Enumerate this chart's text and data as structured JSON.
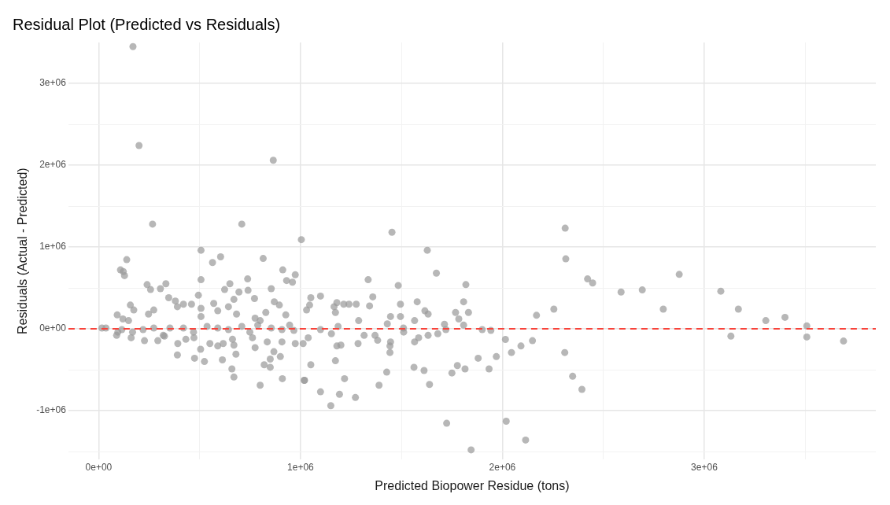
{
  "chart_data": {
    "type": "scatter",
    "title": "Residual Plot (Predicted vs Residuals)",
    "xlabel": "Predicted Biopower Residue (tons)",
    "ylabel": "Residuals (Actual - Predicted)",
    "xlim": [
      -150000,
      3850000
    ],
    "ylim": [
      -1600000,
      3500000
    ],
    "xticks": [
      {
        "value": 0,
        "label": "0e+00"
      },
      {
        "value": 500000,
        "label": null
      },
      {
        "value": 1000000,
        "label": "1e+06"
      },
      {
        "value": 1500000,
        "label": null
      },
      {
        "value": 2000000,
        "label": "2e+06"
      },
      {
        "value": 2500000,
        "label": null
      },
      {
        "value": 3000000,
        "label": "3e+06"
      },
      {
        "value": 3500000,
        "label": null
      }
    ],
    "yticks": [
      {
        "value": -1500000,
        "label": null
      },
      {
        "value": -1000000,
        "label": "-1e+06"
      },
      {
        "value": -500000,
        "label": null
      },
      {
        "value": 0,
        "label": "0e+00"
      },
      {
        "value": 500000,
        "label": null
      },
      {
        "value": 1000000,
        "label": "1e+06"
      },
      {
        "value": 1500000,
        "label": null
      },
      {
        "value": 2000000,
        "label": "2e+06"
      },
      {
        "value": 2500000,
        "label": null
      },
      {
        "value": 3000000,
        "label": "3e+06"
      }
    ],
    "grid": true,
    "marker": "circle",
    "legend": false,
    "ref_lines": [
      {
        "axis": "y",
        "value": 0,
        "color": "#f8433a",
        "line_style": "dashed"
      }
    ],
    "series": [
      {
        "color": "#999999",
        "x": [
          170000,
          200000,
          865000,
          267000,
          709000,
          1004000,
          139000,
          108000,
          122000,
          128000,
          507000,
          564000,
          604000,
          815000,
          912000,
          974000,
          931000,
          960000,
          507000,
          240000,
          257000,
          306000,
          333000,
          347000,
          650000,
          624000,
          738000,
          740000,
          855000,
          494000,
          570000,
          695000,
          670000,
          772000,
          870000,
          895000,
          157000,
          174000,
          92000,
          120000,
          148000,
          247000,
          273000,
          380000,
          390000,
          420000,
          460000,
          507000,
          507000,
          590000,
          643000,
          683000,
          775000,
          800000,
          828000,
          927000,
          946000,
          1030000,
          16000,
          36000,
          95000,
          115000,
          168000,
          220000,
          273000,
          320000,
          353000,
          420000,
          470000,
          537000,
          590000,
          643000,
          709000,
          749000,
          788000,
          855000,
          908000,
          967000,
          89000,
          161000,
          227000,
          293000,
          326000,
          392000,
          432000,
          472000,
          505000,
          551000,
          590000,
          617000,
          663000,
          670000,
          762000,
          775000,
          835000,
          868000,
          908000,
          974000,
          1013000,
          390000,
          475000,
          524000,
          613000,
          680000,
          660000,
          670000,
          820000,
          850000,
          850000,
          900000,
          800000,
          910000,
          1020000,
          1453000,
          1628000,
          1673000,
          1335000,
          1484000,
          1819000,
          1051000,
          1099000,
          1045000,
          1166000,
          1180000,
          1214000,
          1240000,
          1276000,
          1173000,
          1342000,
          1358000,
          1495000,
          1495000,
          1446000,
          1578000,
          1616000,
          1632000,
          1768000,
          1784000,
          1808000,
          1832000,
          1288000,
          1186000,
          1430000,
          1510000,
          1565000,
          1713000,
          1808000,
          1900000,
          1943000,
          1038000,
          1099000,
          1153000,
          1180000,
          1200000,
          1285000,
          1315000,
          1369000,
          1382000,
          1443000,
          1443000,
          1446000,
          1511000,
          1565000,
          1585000,
          1632000,
          1680000,
          1720000,
          1051000,
          1173000,
          1018000,
          1099000,
          1218000,
          1193000,
          1150000,
          1272000,
          1389000,
          1427000,
          1562000,
          1612000,
          1639000,
          1750000,
          1777000,
          1815000,
          1880000,
          1934000,
          1970000,
          2015000,
          2045000,
          2092000,
          2149000,
          2169000,
          1724000,
          1845000,
          2019000,
          2115000,
          2311000,
          2314000,
          2422000,
          2447000,
          2588000,
          2693000,
          2876000,
          2797000,
          2255000,
          2309000,
          2348000,
          2394000,
          3082000,
          3169000,
          3305000,
          3400000,
          3132000,
          3508000,
          3508000,
          3690000
        ],
        "values": [
          3450000,
          2240000,
          2060000,
          1280000,
          1280000,
          1090000,
          845000,
          720000,
          700000,
          650000,
          960000,
          810000,
          880000,
          860000,
          720000,
          660000,
          590000,
          570000,
          600000,
          540000,
          480000,
          490000,
          550000,
          380000,
          550000,
          480000,
          610000,
          470000,
          490000,
          410000,
          310000,
          450000,
          360000,
          370000,
          330000,
          290000,
          290000,
          230000,
          170000,
          120000,
          100000,
          180000,
          230000,
          340000,
          270000,
          300000,
          300000,
          250000,
          150000,
          220000,
          270000,
          180000,
          130000,
          100000,
          200000,
          170000,
          45000,
          230000,
          10000,
          10000,
          -40000,
          -10000,
          -40000,
          -10000,
          10000,
          -80000,
          10000,
          10000,
          -40000,
          30000,
          10000,
          -10000,
          30000,
          -40000,
          45000,
          10000,
          -10000,
          -20000,
          -80000,
          -110000,
          -145000,
          -145000,
          -90000,
          -180000,
          -128000,
          -110000,
          -250000,
          -180000,
          -210000,
          -180000,
          -128000,
          -200000,
          -110000,
          -230000,
          -160000,
          -280000,
          -160000,
          -180000,
          -180000,
          -320000,
          -360000,
          -400000,
          -380000,
          -310000,
          -490000,
          -590000,
          -440000,
          -470000,
          -370000,
          -340000,
          -690000,
          -610000,
          -630000,
          1180000,
          960000,
          680000,
          600000,
          530000,
          540000,
          380000,
          400000,
          290000,
          270000,
          320000,
          300000,
          300000,
          300000,
          200000,
          280000,
          390000,
          300000,
          150000,
          150000,
          330000,
          220000,
          180000,
          200000,
          120000,
          330000,
          200000,
          100000,
          30000,
          60000,
          10000,
          100000,
          55000,
          45000,
          -10000,
          -20000,
          -110000,
          -10000,
          -60000,
          -210000,
          -200000,
          -180000,
          -80000,
          -80000,
          -140000,
          -210000,
          -290000,
          -160000,
          -40000,
          -160000,
          -110000,
          -80000,
          -60000,
          -10000,
          -440000,
          -390000,
          -630000,
          -770000,
          -610000,
          -800000,
          -940000,
          -840000,
          -690000,
          -530000,
          -470000,
          -510000,
          -680000,
          -540000,
          -450000,
          -490000,
          -360000,
          -490000,
          -340000,
          -130000,
          -290000,
          -210000,
          -145000,
          165000,
          -1155000,
          -1480000,
          -1130000,
          -1360000,
          1230000,
          855000,
          610000,
          560000,
          450000,
          475000,
          665000,
          240000,
          240000,
          -290000,
          -580000,
          -740000,
          460000,
          240000,
          100000,
          140000,
          -90000,
          35000,
          -100000,
          -150000
        ]
      }
    ]
  }
}
